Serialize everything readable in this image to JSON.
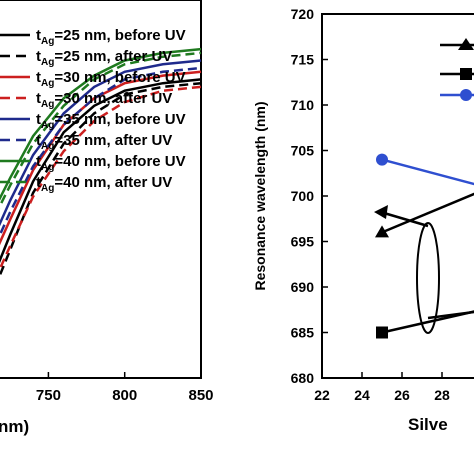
{
  "chart_data": [
    {
      "type": "line",
      "xlabel": "nm)",
      "ylabel": "",
      "xlim": [
        715,
        850
      ],
      "x_ticks": [
        "750",
        "800",
        "850"
      ],
      "series": [
        {
          "name": "tAg=25 nm, before UV",
          "color": "#000000",
          "dash": "solid",
          "x": [
            715,
            725,
            740,
            760,
            780,
            800,
            825,
            850
          ],
          "values": [
            0.28,
            0.38,
            0.52,
            0.65,
            0.72,
            0.76,
            0.78,
            0.79
          ]
        },
        {
          "name": "tAg=25 nm, after UV",
          "color": "#000000",
          "dash": "dashed",
          "x": [
            715,
            725,
            740,
            760,
            780,
            800,
            825,
            850
          ],
          "values": [
            0.24,
            0.34,
            0.49,
            0.62,
            0.7,
            0.75,
            0.77,
            0.78
          ]
        },
        {
          "name": "tAg=30 nm, before UV",
          "color": "#cc1f1f",
          "dash": "solid",
          "x": [
            715,
            725,
            740,
            760,
            780,
            800,
            825,
            850
          ],
          "values": [
            0.33,
            0.42,
            0.55,
            0.67,
            0.74,
            0.78,
            0.8,
            0.81
          ]
        },
        {
          "name": "tAg=30 nm, after UV",
          "color": "#cc1f1f",
          "dash": "dashed",
          "x": [
            715,
            725,
            740,
            760,
            780,
            800,
            825,
            850
          ],
          "values": [
            0.26,
            0.35,
            0.48,
            0.6,
            0.68,
            0.73,
            0.76,
            0.77
          ]
        },
        {
          "name": "tAg=35 nm, before UV",
          "color": "#1f2a8c",
          "dash": "solid",
          "x": [
            715,
            725,
            740,
            760,
            780,
            800,
            825,
            850
          ],
          "values": [
            0.38,
            0.47,
            0.59,
            0.7,
            0.77,
            0.81,
            0.83,
            0.84
          ]
        },
        {
          "name": "tAg=35 nm, after UV",
          "color": "#1f2a8c",
          "dash": "dashed",
          "x": [
            715,
            725,
            740,
            760,
            780,
            800,
            825,
            850
          ],
          "values": [
            0.35,
            0.44,
            0.56,
            0.67,
            0.74,
            0.79,
            0.81,
            0.82
          ]
        },
        {
          "name": "tAg=40 nm, before UV",
          "color": "#1f7a1f",
          "dash": "solid",
          "x": [
            715,
            725,
            740,
            760,
            780,
            800,
            825,
            850
          ],
          "values": [
            0.45,
            0.53,
            0.64,
            0.74,
            0.8,
            0.84,
            0.86,
            0.87
          ]
        },
        {
          "name": "tAg=40 nm, after UV",
          "color": "#1f7a1f",
          "dash": "dashed",
          "x": [
            715,
            725,
            740,
            760,
            780,
            800,
            825,
            850
          ],
          "values": [
            0.43,
            0.51,
            0.62,
            0.72,
            0.79,
            0.83,
            0.85,
            0.86
          ]
        }
      ],
      "legend_placement": "top",
      "grid": false
    },
    {
      "type": "line",
      "xlabel": "Silve",
      "ylabel": "Resonance wavelength (nm)",
      "ylim": [
        680,
        720
      ],
      "xlim": [
        22,
        31
      ],
      "y_ticks": [
        "680",
        "685",
        "690",
        "695",
        "700",
        "705",
        "710",
        "715",
        "720"
      ],
      "x_ticks": [
        "22",
        "24",
        "26",
        "28"
      ],
      "series": [
        {
          "marker": "triangle",
          "color": "#000000",
          "x": [
            25,
            31
          ],
          "values": [
            696,
            701.5
          ]
        },
        {
          "marker": "square",
          "color": "#000000",
          "x": [
            25,
            31
          ],
          "values": [
            685,
            688
          ]
        },
        {
          "marker": "circle",
          "color": "#2f4fd0",
          "x": [
            25,
            31
          ],
          "values": [
            704,
            700.5
          ]
        }
      ],
      "legend_placement": "top-right",
      "grid": false
    }
  ]
}
